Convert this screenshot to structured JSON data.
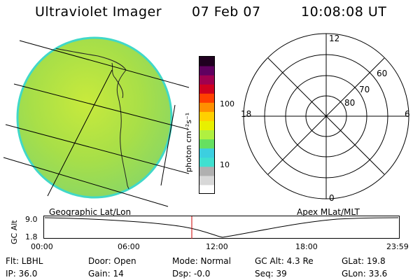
{
  "header": {
    "instrument": "Ultraviolet Imager",
    "date": "07 Feb 07",
    "time": "10:08:08 UT"
  },
  "image_panel": {
    "projection_label": "Geographic Lat/Lon"
  },
  "colorbar": {
    "unit_label": "photon cm⁻²s⁻¹",
    "ticks": [
      "100",
      "10"
    ],
    "colors": [
      "#ffffff",
      "#d8d8d8",
      "#b0b0b0",
      "#40e0d0",
      "#3ccfe0",
      "#66e060",
      "#b0f040",
      "#e8f000",
      "#ffd000",
      "#ff9000",
      "#ff4000",
      "#d00020",
      "#a00050",
      "#600060",
      "#200020"
    ]
  },
  "polar_plot": {
    "coord_label": "Apex MLat/MLT",
    "mlt_labels": {
      "top": "12",
      "right": "6",
      "bottom": "0",
      "left": "18"
    },
    "lat_labels": [
      "60",
      "70",
      "80"
    ]
  },
  "altitude_strip": {
    "ylabel": "GC Alt",
    "y_ticks": [
      "9.0",
      "1.8"
    ],
    "x_ticks": [
      "00:00",
      "06:00",
      "12:00",
      "18:00",
      "23:59"
    ],
    "marker_time": "10:08"
  },
  "status": {
    "flt": "Flt: LBHL",
    "ip": "IP: 36.0",
    "door": "Door: Open",
    "gain": "Gain: 14",
    "mode": "Mode: Normal",
    "dsp": "Dsp:   -0.0",
    "gc_alt": "GC Alt: 4.3 Re",
    "seq": "Seq: 39",
    "glat": "GLat:   19.8",
    "glon": "GLon:   33.6"
  },
  "colors": {
    "disk_fill": "#a7e04a",
    "disk_edge": "#40d8c8",
    "marker": "#cc0000"
  }
}
